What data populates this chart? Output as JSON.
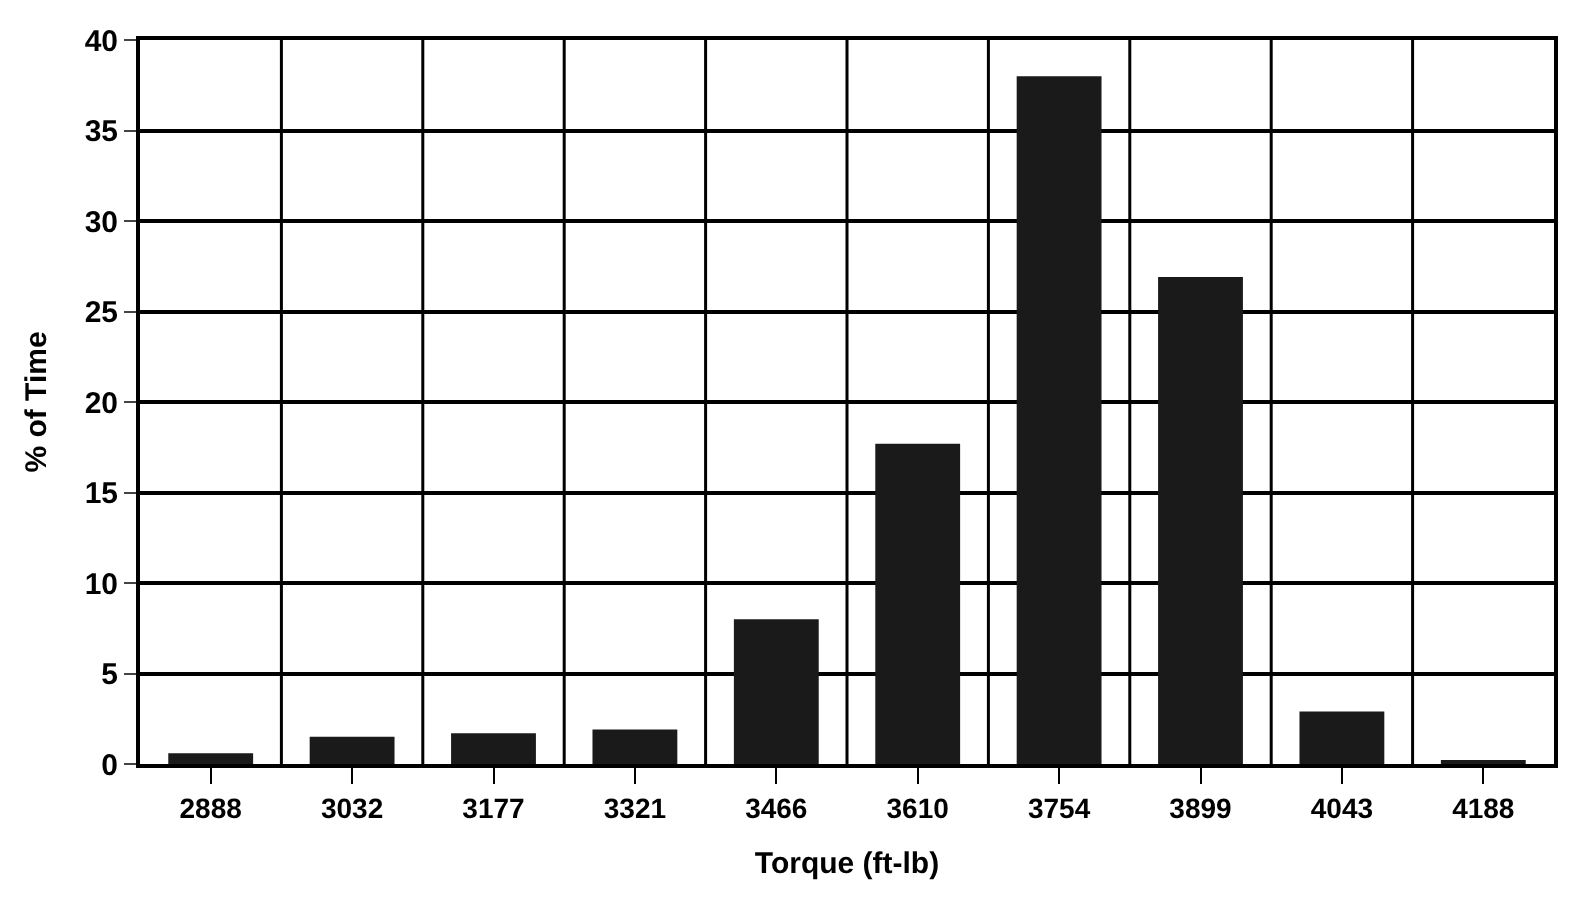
{
  "chart_data": {
    "type": "bar",
    "xlabel": "Torque (ft-lb)",
    "ylabel": "% of Time",
    "categories": [
      "2888",
      "3032",
      "3177",
      "3321",
      "3466",
      "3610",
      "3754",
      "3899",
      "4043",
      "4188"
    ],
    "values": [
      0.6,
      1.5,
      1.7,
      1.9,
      8.0,
      17.7,
      38.0,
      26.9,
      2.9,
      0.2
    ],
    "color": "#1a1a1a",
    "ylim": [
      0,
      40
    ],
    "yticks": [
      0,
      5,
      10,
      15,
      20,
      25,
      30,
      35,
      40
    ],
    "grid": true
  }
}
